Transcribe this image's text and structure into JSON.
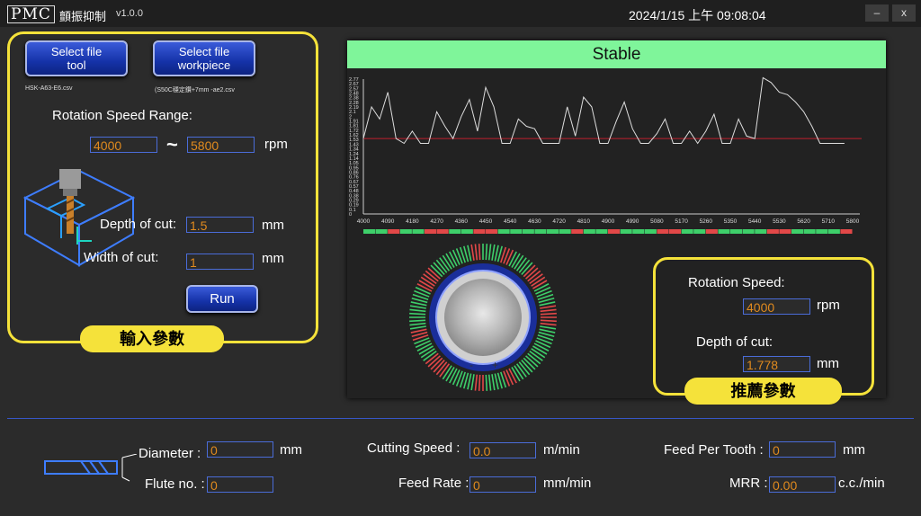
{
  "titlebar": {
    "logo": "PMC",
    "title": "顫振抑制",
    "version": "v1.0.0",
    "datetime": "2024/1/15 上午 09:08:04",
    "minimize": "–",
    "close": "x"
  },
  "input_panel": {
    "select_tool_label": "Select file tool",
    "select_tool_line1": "Select file",
    "select_tool_line2": "tool",
    "select_workpiece_line1": "Select file",
    "select_workpiece_line2": "workpiece",
    "tool_file": "HSK-A63-E6.csv",
    "workpiece_file": "(S50C穩定鑽+7mm -ae2.csv",
    "rotation_speed_range_label": "Rotation Speed Range:",
    "speed_min": "4000",
    "tilde": "~",
    "speed_max": "5800",
    "speed_unit": "rpm",
    "depth_label": "Depth of cut:",
    "depth_value": "1.5",
    "depth_unit": "mm",
    "width_label": "Width of cut:",
    "width_value": "1",
    "width_unit": "mm",
    "run_label": "Run",
    "tag": "輸入參數"
  },
  "status": {
    "text": "Stable",
    "color": "#7ff59a"
  },
  "chart_data": {
    "type": "line",
    "x": [
      4000,
      4030,
      4060,
      4090,
      4120,
      4150,
      4180,
      4210,
      4240,
      4270,
      4300,
      4330,
      4360,
      4390,
      4420,
      4450,
      4480,
      4510,
      4540,
      4570,
      4600,
      4630,
      4660,
      4690,
      4720,
      4750,
      4780,
      4810,
      4840,
      4870,
      4900,
      4930,
      4960,
      4990,
      5020,
      5050,
      5080,
      5110,
      5140,
      5170,
      5200,
      5230,
      5260,
      5290,
      5320,
      5350,
      5380,
      5410,
      5440,
      5470,
      5500,
      5530,
      5560,
      5590,
      5620,
      5650,
      5680,
      5710,
      5740,
      5770
    ],
    "values": [
      1.55,
      2.2,
      1.95,
      2.5,
      1.55,
      1.45,
      1.7,
      1.45,
      1.45,
      2.1,
      1.8,
      1.55,
      2.0,
      2.35,
      1.7,
      2.6,
      2.2,
      1.45,
      1.45,
      1.95,
      1.8,
      1.75,
      1.45,
      1.45,
      1.45,
      2.2,
      1.6,
      2.4,
      2.2,
      1.45,
      1.45,
      1.9,
      2.3,
      1.75,
      1.45,
      1.45,
      1.65,
      1.95,
      1.45,
      1.45,
      1.7,
      1.45,
      1.7,
      2.05,
      1.45,
      1.45,
      1.95,
      1.6,
      1.55,
      2.8,
      2.7,
      2.5,
      2.45,
      2.3,
      2.1,
      1.8,
      1.45,
      1.45,
      1.45,
      1.45
    ],
    "threshold": 1.55,
    "xticks": [
      "4000",
      "4090",
      "4180",
      "4270",
      "4360",
      "4450",
      "4540",
      "4630",
      "4720",
      "4810",
      "4900",
      "4990",
      "5080",
      "5170",
      "5260",
      "5350",
      "5440",
      "5530",
      "5620",
      "5710",
      "5800"
    ],
    "yticks": [
      "2.77",
      "2.67",
      "2.57",
      "2.48",
      "2.38",
      "2.28",
      "2.19",
      "2.1",
      "2",
      "1.91",
      "1.81",
      "1.72",
      "1.62",
      "1.53",
      "1.43",
      "1.34",
      "1.24",
      "1.14",
      "1.05",
      "0.95",
      "0.86",
      "0.76",
      "0.67",
      "0.57",
      "0.48",
      "0.38",
      "0.29",
      "0.19",
      "0.1",
      "0"
    ],
    "ylim": [
      0,
      2.77
    ],
    "xlim": [
      4000,
      5800
    ],
    "line_color": "#dddddd",
    "threshold_color": "#c0202c",
    "stability_segments": [
      1,
      1,
      0,
      1,
      1,
      0,
      0,
      1,
      1,
      0,
      0,
      1,
      1,
      1,
      1,
      1,
      1,
      0,
      1,
      1,
      0,
      1,
      1,
      1,
      0,
      0,
      1,
      1,
      0,
      1,
      1,
      1,
      1,
      0,
      0,
      1,
      1,
      1,
      1,
      0
    ],
    "stable_color": "#3ecf6a",
    "unstable_color": "#e24848"
  },
  "recommend_panel": {
    "rotation_label": "Rotation Speed:",
    "rotation_value": "4000",
    "rotation_unit": "rpm",
    "depth_label": "Depth of cut:",
    "depth_value": "1.778",
    "depth_unit": "mm",
    "tag": "推薦參數",
    "knob_minus": "-",
    "knob_plus": "+"
  },
  "bottom": {
    "diameter_label": "Diameter :",
    "diameter_value": "0",
    "diameter_unit": "mm",
    "flute_label": "Flute no. :",
    "flute_value": "0",
    "cutting_speed_label": "Cutting Speed  :",
    "cutting_speed_value": "0.0",
    "cutting_speed_unit": "m/min",
    "feed_rate_label": "Feed Rate :",
    "feed_rate_value": "0",
    "feed_rate_unit": "mm/min",
    "feed_tooth_label": "Feed Per Tooth :",
    "feed_tooth_value": "0",
    "feed_tooth_unit": "mm",
    "mrr_label": "MRR :",
    "mrr_value": "0.00",
    "mrr_unit": "c.c./min"
  }
}
